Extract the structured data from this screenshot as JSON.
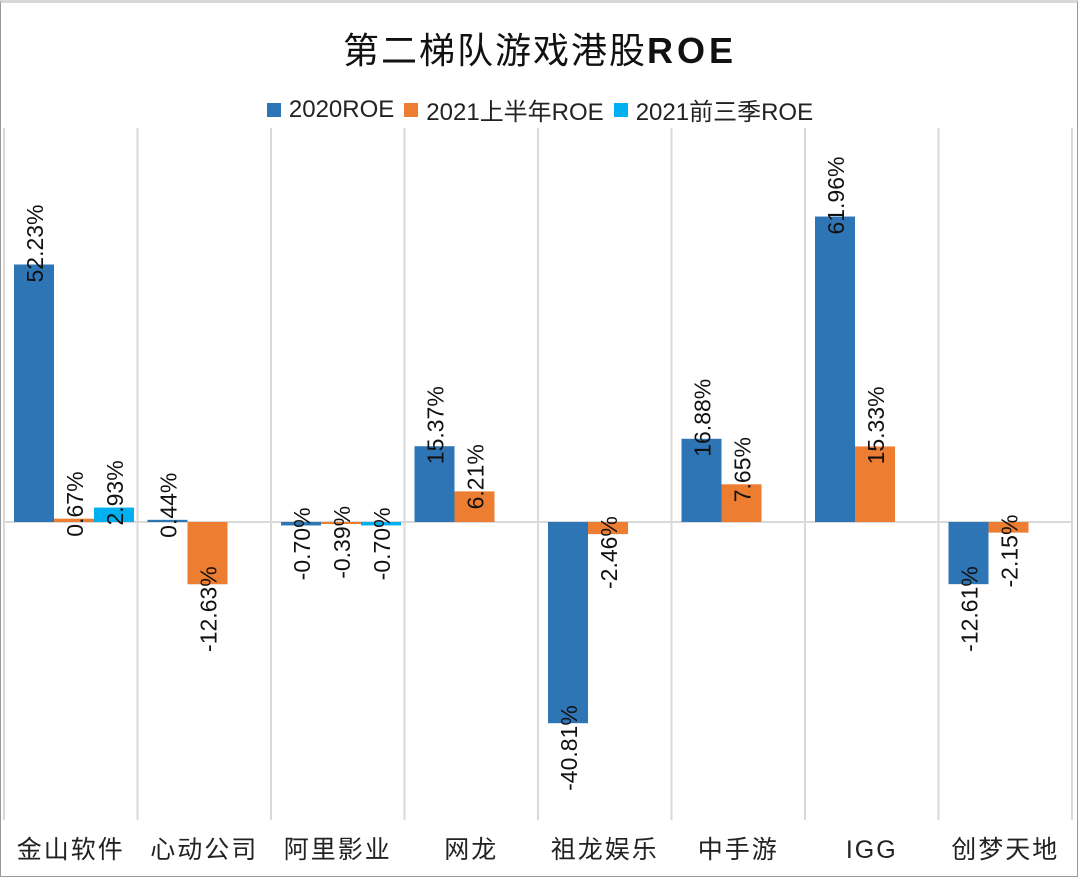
{
  "chart_data": {
    "type": "bar",
    "title": "第二梯队游戏港股ROE",
    "xlabel": "",
    "ylabel": "",
    "ylim": [
      -45,
      75
    ],
    "grid": "vertical category separators",
    "legend_position": "top",
    "categories": [
      "金山软件",
      "心动公司",
      "阿里影业",
      "网龙",
      "祖龙娱乐",
      "中手游",
      "IGG",
      "创梦天地"
    ],
    "series": [
      {
        "name": "2020ROE",
        "color": "#2e75b6",
        "values": [
          52.23,
          0.44,
          -0.7,
          15.37,
          -40.81,
          16.88,
          61.96,
          -12.61
        ],
        "labels": [
          "52.23%",
          "0.44%",
          "-0.70%",
          "15.37%",
          "-40.81%",
          "16.88%",
          "61.96%",
          "-12.61%"
        ]
      },
      {
        "name": "2021上半年ROE",
        "color": "#ed7d31",
        "values": [
          0.67,
          -12.63,
          -0.39,
          6.21,
          -2.46,
          7.65,
          15.33,
          -2.15
        ],
        "labels": [
          "0.67%",
          "-12.63%",
          "-0.39%",
          "6.21%",
          "-2.46%",
          "7.65%",
          "15.33%",
          "-2.15%"
        ]
      },
      {
        "name": "2021前三季ROE",
        "color": "#00b0f0",
        "values": [
          2.93,
          null,
          -0.7,
          null,
          null,
          null,
          null,
          null
        ],
        "labels": [
          "2.93%",
          null,
          "-0.70%",
          null,
          null,
          null,
          null,
          null
        ]
      }
    ]
  },
  "title": {
    "cn": "第二梯队游戏港股",
    "latin": "ROE"
  },
  "legend": [
    {
      "label": "2020ROE",
      "color": "#2e75b6"
    },
    {
      "label": "2021上半年ROE",
      "color": "#ed7d31"
    },
    {
      "label": "2021前三季ROE",
      "color": "#00b0f0"
    }
  ]
}
